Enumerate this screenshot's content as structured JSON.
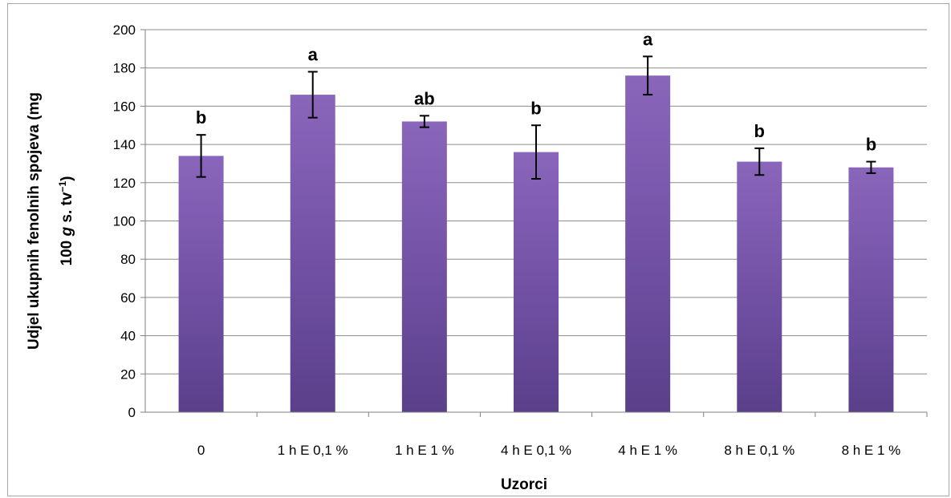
{
  "chart_data": {
    "type": "bar",
    "categories": [
      "0",
      "1 h E 0,1 %",
      "1 h E 1 %",
      "4 h E 0,1 %",
      "4 h E 1 %",
      "8 h E 0,1 %",
      "8 h E 1 %"
    ],
    "values": [
      134,
      166,
      152,
      136,
      176,
      131,
      128
    ],
    "errors": [
      11,
      12,
      3,
      14,
      10,
      7,
      3
    ],
    "significance_letters": [
      "b",
      "a",
      "ab",
      "b",
      "a",
      "b",
      "b"
    ],
    "title": "",
    "xlabel": "Uzorci",
    "ylabel_line1": "Udjel ukupnih fenolnih spojeva (mg",
    "ylabel_line2_a": "100",
    "ylabel_line2_g": "g",
    "ylabel_line2_b": "s. tv",
    "ylabel_line2_sup": "−1",
    "ylabel_line2_c": ")",
    "ylim": [
      0,
      200
    ],
    "yticks": [
      0,
      20,
      40,
      60,
      80,
      100,
      120,
      140,
      160,
      180,
      200
    ],
    "grid": true,
    "legend": "none",
    "colors": {
      "bar_top": "#8a66bb",
      "bar_mid": "#7352a6",
      "bar_bottom": "#5a3f8a",
      "grid": "#8c8c8c",
      "axis": "#808080",
      "error_bar": "#000000"
    }
  }
}
